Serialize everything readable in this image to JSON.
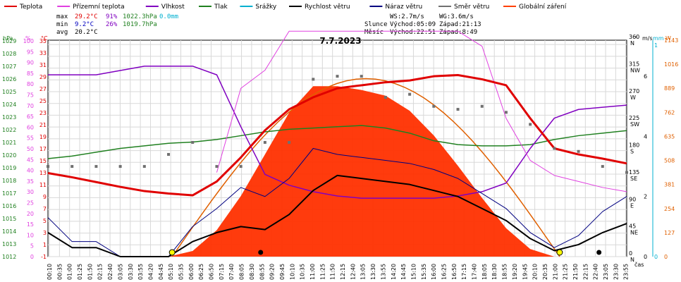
{
  "chart_data": {
    "type": "line",
    "title": "7.7.2023",
    "legend": [
      {
        "name": "Teplota",
        "color": "#e00000"
      },
      {
        "name": "Přízemní teplota",
        "color": "#e040e0"
      },
      {
        "name": "Vlhkost",
        "color": "#8000c0"
      },
      {
        "name": "Tlak",
        "color": "#208020"
      },
      {
        "name": "Srážky",
        "color": "#00b0d0"
      },
      {
        "name": "Rychlost větru",
        "color": "#000000"
      },
      {
        "name": "Náraz větru",
        "color": "#000080"
      },
      {
        "name": "Směr větru",
        "color": "#707070"
      },
      {
        "name": "Globální záření",
        "color": "#ff4000"
      }
    ],
    "stats": {
      "max_label": "max",
      "max_temp": "29.2°C",
      "max_hum": "91%",
      "max_press": "1022.3hPa",
      "max_rain": "0.0mm",
      "min_label": "min",
      "min_temp": "9.2°C",
      "min_hum": "26%",
      "min_press": "1019.7hPa",
      "avg_label": "avg",
      "avg_temp": "20.2°C"
    },
    "wind_info": {
      "ws": "WS:2.7m/s",
      "wg": "WG:3.6m/s"
    },
    "sun_info": {
      "label": "Slunce",
      "rise": "Východ:05:09",
      "set": "Západ:21:13"
    },
    "moon_info": {
      "label": "Měsíc",
      "rise": "Východ:22:51",
      "set": "Západ:8:49"
    },
    "left_axes": {
      "hpa_label": "hPa",
      "pct_label": "%",
      "c_label": "°C",
      "hpa_ticks": [
        "1012",
        "1013",
        "1014",
        "1015",
        "1016",
        "1017",
        "1018",
        "1019",
        "1020",
        "1021",
        "1022",
        "1023",
        "1024",
        "1025",
        "1026",
        "1027",
        "1028",
        "1029"
      ],
      "pct_ticks": [
        "0",
        "5",
        "10",
        "15",
        "20",
        "25",
        "30",
        "35",
        "40",
        "45",
        "50",
        "55",
        "60",
        "65",
        "70",
        "75",
        "80",
        "85",
        "90",
        "95",
        "100"
      ],
      "c_ticks": [
        "-1",
        "1",
        "3",
        "5",
        "7",
        "9",
        "11",
        "13",
        "15",
        "17",
        "19",
        "21",
        "23",
        "25",
        "27",
        "29",
        "31",
        "33",
        "35"
      ]
    },
    "right_axes": {
      "dir_label": "°",
      "ms_label": "m/s",
      "mm_label": "mm",
      "w_label": "W",
      "dir_ticks": [
        {
          "deg": "0",
          "name": "N"
        },
        {
          "deg": "45",
          "name": "NE"
        },
        {
          "deg": "90",
          "name": "E"
        },
        {
          "deg": "135",
          "name": "SE"
        },
        {
          "deg": "180",
          "name": "S"
        },
        {
          "deg": "225",
          "name": "SW"
        },
        {
          "deg": "270",
          "name": "W"
        },
        {
          "deg": "315",
          "name": "NW"
        },
        {
          "deg": "360",
          "name": "N"
        }
      ],
      "ms_ticks": [
        "0",
        "2",
        "4",
        "6"
      ],
      "mm_ticks": [
        "0",
        "1"
      ],
      "w_ticks": [
        "0",
        "127",
        "254",
        "381",
        "508",
        "635",
        "762",
        "889",
        "1016",
        "1143"
      ]
    },
    "x_label": "čas",
    "x_ticks": [
      "00:10",
      "00:35",
      "01:00",
      "01:25",
      "01:50",
      "02:15",
      "02:40",
      "03:05",
      "03:30",
      "03:55",
      "04:20",
      "04:45",
      "05:10",
      "05:35",
      "06:00",
      "06:25",
      "06:50",
      "07:15",
      "07:40",
      "08:05",
      "08:30",
      "08:55",
      "09:20",
      "09:45",
      "10:10",
      "10:35",
      "11:00",
      "11:25",
      "11:50",
      "12:15",
      "12:40",
      "13:05",
      "13:30",
      "13:55",
      "14:20",
      "14:45",
      "15:10",
      "15:35",
      "16:00",
      "16:25",
      "16:50",
      "17:15",
      "17:40",
      "18:05",
      "18:30",
      "18:55",
      "19:20",
      "19:45",
      "20:10",
      "20:35",
      "21:00",
      "21:25",
      "21:50",
      "22:15",
      "22:40",
      "23:05",
      "23:30",
      "23:55"
    ],
    "hours": [
      0,
      1,
      2,
      3,
      4,
      5,
      6,
      7,
      8,
      9,
      10,
      11,
      12,
      13,
      14,
      15,
      16,
      17,
      18,
      19,
      20,
      21,
      22,
      23,
      24
    ],
    "temperature": [
      12.9,
      12.2,
      11.4,
      10.6,
      9.9,
      9.5,
      9.2,
      11.5,
      15.5,
      20.0,
      23.5,
      25.5,
      27.0,
      27.5,
      28.0,
      28.3,
      29.0,
      29.2,
      28.5,
      27.5,
      22.0,
      17.0,
      16.0,
      15.3,
      14.5
    ],
    "ground_temperature": [
      null,
      null,
      null,
      null,
      null,
      null,
      null,
      13.0,
      27.0,
      30.0,
      36.5,
      36.5,
      36.5,
      36.5,
      36.5,
      36.5,
      36.5,
      36.5,
      34.0,
      22.0,
      15.0,
      12.5,
      11.5,
      10.5,
      9.8
    ],
    "humidity": [
      84,
      84,
      84,
      86,
      88,
      88,
      88,
      84,
      60,
      38,
      33,
      30,
      28,
      27,
      27,
      27,
      27,
      28,
      30,
      34,
      50,
      64,
      68,
      69,
      70
    ],
    "pressure": [
      1019.7,
      1019.9,
      1020.2,
      1020.5,
      1020.7,
      1020.9,
      1021.0,
      1021.2,
      1021.5,
      1021.8,
      1022.0,
      1022.1,
      1022.2,
      1022.3,
      1022.1,
      1021.7,
      1021.1,
      1020.8,
      1020.7,
      1020.7,
      1020.8,
      1021.2,
      1021.5,
      1021.7,
      1021.9
    ],
    "wind_speed": [
      0.8,
      0.3,
      0.3,
      0.0,
      0.0,
      0.0,
      0.5,
      0.8,
      1.0,
      0.9,
      1.4,
      2.2,
      2.7,
      2.6,
      2.5,
      2.4,
      2.2,
      2.0,
      1.6,
      1.2,
      0.6,
      0.2,
      0.4,
      0.8,
      1.1
    ],
    "wind_gust": [
      1.3,
      0.5,
      0.5,
      0.0,
      0.0,
      0.0,
      1.0,
      1.6,
      2.3,
      2.0,
      2.6,
      3.6,
      3.4,
      3.3,
      3.2,
      3.1,
      2.9,
      2.6,
      2.1,
      1.6,
      0.8,
      0.3,
      0.7,
      1.5,
      2.0
    ],
    "wind_direction": [
      150,
      150,
      150,
      150,
      150,
      170,
      190,
      150,
      150,
      190,
      190,
      295,
      300,
      300,
      265,
      270,
      250,
      245,
      250,
      240,
      220,
      180,
      175,
      150,
      140
    ],
    "solar_radiation": [
      0,
      0,
      0,
      0,
      0,
      0,
      30,
      140,
      320,
      540,
      760,
      900,
      900,
      880,
      850,
      770,
      640,
      480,
      310,
      150,
      40,
      0,
      0,
      0,
      0
    ],
    "solar_theoretical_peak": 940,
    "rain": [
      0,
      0,
      0,
      0,
      0,
      0,
      0,
      0,
      0,
      0,
      0,
      0,
      0,
      0,
      0,
      0,
      0,
      0,
      0,
      0,
      0,
      0,
      0,
      0,
      0
    ],
    "ylim_temp": [
      -1,
      35
    ],
    "ylim_humidity": [
      0,
      100
    ],
    "ylim_pressure": [
      1012,
      1029
    ],
    "ylim_wind": [
      0,
      7.2
    ],
    "ylim_direction": [
      0,
      360
    ],
    "ylim_solar": [
      0,
      1143
    ],
    "sun_rise_hour": 5.15,
    "sun_set_hour": 21.22,
    "moon_rise_hour": 22.85,
    "moon_set_hour": 8.82,
    "grid": true,
    "legend_position": "top"
  }
}
